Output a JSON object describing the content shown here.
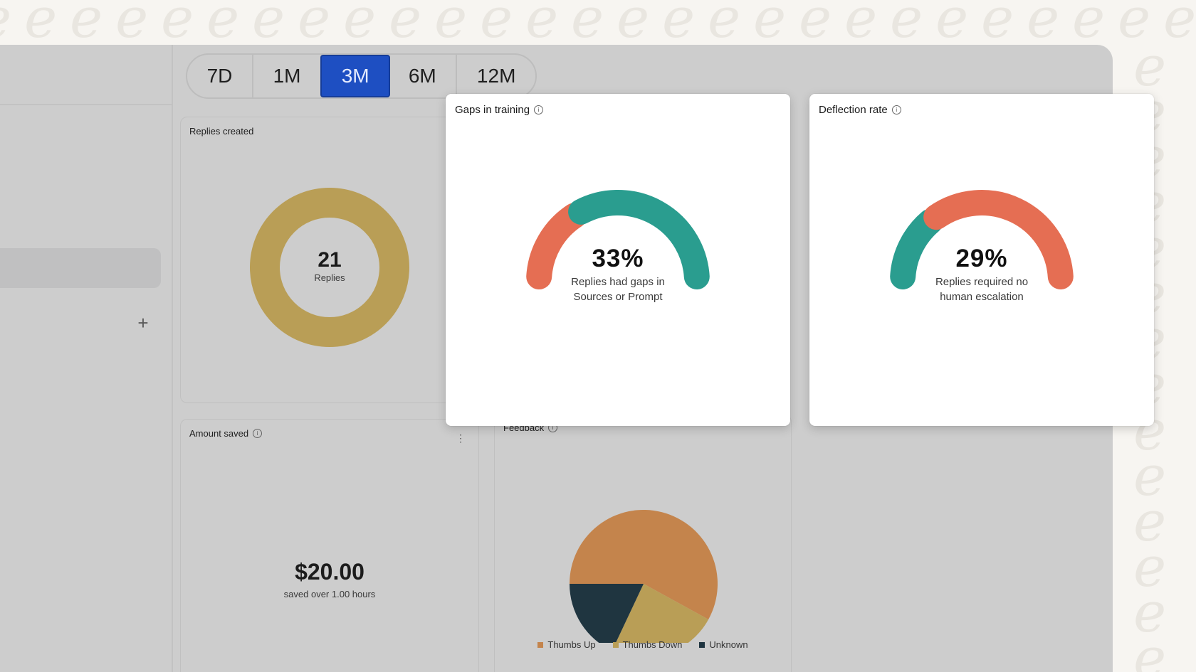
{
  "period_tabs": [
    {
      "label": "7D",
      "active": false
    },
    {
      "label": "1M",
      "active": false
    },
    {
      "label": "3M",
      "active": true
    },
    {
      "label": "6M",
      "active": false
    },
    {
      "label": "12M",
      "active": false
    }
  ],
  "sidebar": {
    "add_icon": "+"
  },
  "replies_card": {
    "title": "Replies created",
    "value": "21",
    "label": "Replies"
  },
  "amount_card": {
    "title": "Amount saved",
    "value": "$20.00",
    "subtitle": "saved over 1.00 hours"
  },
  "feedback_card": {
    "title": "Feedback",
    "legend": [
      {
        "label": "Thumbs Up",
        "color": "#c4844c"
      },
      {
        "label": "Thumbs Down",
        "color": "#b99e56"
      },
      {
        "label": "Unknown",
        "color": "#1f3540"
      }
    ]
  },
  "gaps_card": {
    "title": "Gaps in training",
    "value": "33%",
    "subtitle_line1": "Replies had gaps in",
    "subtitle_line2": "Sources or Prompt"
  },
  "deflection_card": {
    "title": "Deflection rate",
    "value": "29%",
    "subtitle_line1": "Replies required no",
    "subtitle_line2": "human escalation"
  },
  "colors": {
    "accent_blue": "#1e4fc2",
    "gauge_orange": "#e56e53",
    "gauge_teal": "#2a9d8f",
    "donut_gold": "#b99e56"
  },
  "chart_data": [
    {
      "type": "pie",
      "title": "Feedback",
      "categories": [
        "Thumbs Up",
        "Thumbs Down",
        "Unknown"
      ],
      "values": [
        58,
        24,
        18
      ]
    },
    {
      "type": "pie",
      "title": "Replies created",
      "categories": [
        "Replies"
      ],
      "values": [
        21
      ]
    },
    {
      "type": "gauge",
      "title": "Gaps in training",
      "value": 33,
      "range": [
        0,
        100
      ]
    },
    {
      "type": "gauge",
      "title": "Deflection rate",
      "value": 29,
      "range": [
        0,
        100
      ]
    }
  ]
}
